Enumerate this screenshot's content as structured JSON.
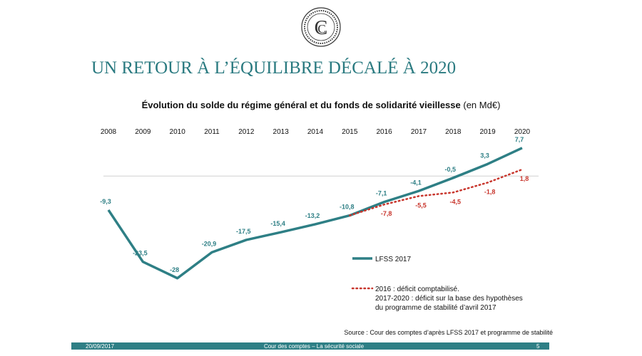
{
  "header": {
    "title": "UN RETOUR À L’ÉQUILIBRE DÉCALÉ À 2020"
  },
  "chart_data": {
    "type": "line",
    "title": "Évolution du solde du régime général et du fonds de solidarité vieillesse",
    "title_unit": "(en Md€)",
    "categories": [
      "2008",
      "2009",
      "2010",
      "2011",
      "2012",
      "2013",
      "2014",
      "2015",
      "2016",
      "2017",
      "2018",
      "2019",
      "2020"
    ],
    "ylim": [
      -30,
      10
    ],
    "series": [
      {
        "name": "LFSS 2017",
        "color": "#2e7f85",
        "style": "solid",
        "values": [
          -9.3,
          -23.5,
          -28,
          -20.9,
          -17.5,
          -15.4,
          -13.2,
          -10.8,
          -7.1,
          -4.1,
          -0.5,
          3.3,
          7.7
        ],
        "value_labels": [
          "-9,3",
          "-23,5",
          "-28",
          "-20,9",
          "-17,5",
          "-15,4",
          "-13,2",
          "-10,8",
          "-7,1",
          "-4,1",
          "-0,5",
          "3,3",
          "7,7"
        ]
      },
      {
        "name": "2016 : déficit comptabilisé.\n2017-2020 : déficit sur la base des hypothèses\ndu programme de stabilité d’avril 2017",
        "color": "#c8352c",
        "style": "dotted",
        "values": [
          null,
          null,
          null,
          null,
          null,
          null,
          null,
          -10.8,
          -7.8,
          -5.5,
          -4.5,
          -1.8,
          1.8
        ],
        "value_labels": [
          null,
          null,
          null,
          null,
          null,
          null,
          null,
          null,
          "-7,8",
          "-5,5",
          "-4,5",
          "-1,8",
          "1,8"
        ]
      }
    ],
    "source": "Source : Cour des comptes d’après LFSS 2017 et programme de stabilité"
  },
  "footer": {
    "date": "20/09/2017",
    "center": "Cour des comptes – La sécurité sociale",
    "page": "5"
  }
}
